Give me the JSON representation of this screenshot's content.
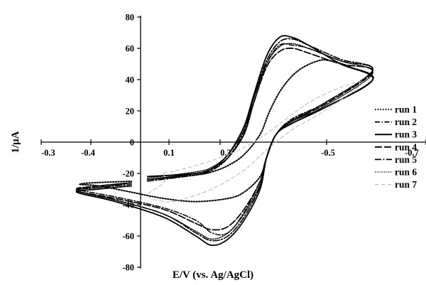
{
  "chart_data": {
    "type": "line",
    "title": "",
    "xlabel": "E/V (vs. Ag/AgCl)",
    "ylabel": "1/μA",
    "x_ticks": [
      "-0.3",
      "-0.4",
      "0.1",
      "0.3",
      "-0.5",
      "-0.7"
    ],
    "y_ticks": [
      "80",
      "60",
      "40",
      "20",
      "0",
      "-20",
      "-40",
      "-60",
      "-80"
    ],
    "ylim": [
      -80,
      80
    ],
    "grid": false,
    "legend_position": "right",
    "series": [
      {
        "name": "run 1",
        "color": "#000000",
        "dash": "dotted",
        "forward": [
          [
            -0.05,
            -24
          ],
          [
            0.1,
            -21
          ],
          [
            0.15,
            -19
          ],
          [
            0.2,
            -15
          ],
          [
            0.25,
            -8
          ],
          [
            0.3,
            5
          ],
          [
            0.33,
            20
          ],
          [
            0.37,
            35
          ],
          [
            0.42,
            46
          ],
          [
            0.48,
            52
          ],
          [
            0.52,
            52
          ],
          [
            0.58,
            48
          ],
          [
            0.65,
            40
          ]
        ],
        "reverse": [
          [
            0.65,
            30
          ],
          [
            0.5,
            22
          ],
          [
            0.4,
            14
          ],
          [
            0.35,
            5
          ],
          [
            0.32,
            -10
          ],
          [
            0.3,
            -22
          ],
          [
            0.25,
            -32
          ],
          [
            0.2,
            -36
          ],
          [
            0.1,
            -38
          ],
          [
            0.0,
            -36
          ],
          [
            -0.1,
            -32
          ],
          [
            -0.2,
            -28
          ],
          [
            -0.26,
            -27
          ],
          [
            -0.22,
            -26
          ],
          [
            -0.1,
            -25
          ]
        ]
      },
      {
        "name": "run 2",
        "color": "#000000",
        "dash": "dashdot",
        "forward": [
          [
            -0.05,
            -24
          ],
          [
            0.1,
            -20
          ],
          [
            0.15,
            -17
          ],
          [
            0.2,
            -10
          ],
          [
            0.25,
            5
          ],
          [
            0.28,
            25
          ],
          [
            0.32,
            50
          ],
          [
            0.36,
            62
          ],
          [
            0.4,
            62
          ],
          [
            0.45,
            60
          ],
          [
            0.55,
            52
          ],
          [
            0.65,
            46
          ]
        ],
        "reverse": [
          [
            0.65,
            35
          ],
          [
            0.5,
            25
          ],
          [
            0.4,
            15
          ],
          [
            0.35,
            5
          ],
          [
            0.32,
            -10
          ],
          [
            0.3,
            -25
          ],
          [
            0.25,
            -45
          ],
          [
            0.2,
            -58
          ],
          [
            0.15,
            -58
          ],
          [
            0.1,
            -50
          ],
          [
            0.0,
            -42
          ],
          [
            -0.15,
            -35
          ],
          [
            -0.27,
            -30
          ],
          [
            -0.2,
            -28
          ],
          [
            -0.1,
            -26
          ]
        ]
      },
      {
        "name": "run 3",
        "color": "#000000",
        "dash": "solid",
        "forward": [
          [
            -0.05,
            -22
          ],
          [
            0.1,
            -20
          ],
          [
            0.15,
            -17
          ],
          [
            0.2,
            -8
          ],
          [
            0.25,
            10
          ],
          [
            0.28,
            30
          ],
          [
            0.32,
            55
          ],
          [
            0.36,
            67
          ],
          [
            0.4,
            67
          ],
          [
            0.45,
            62
          ],
          [
            0.55,
            50
          ],
          [
            0.65,
            40
          ]
        ],
        "reverse": [
          [
            0.65,
            33
          ],
          [
            0.5,
            22
          ],
          [
            0.4,
            12
          ],
          [
            0.35,
            5
          ],
          [
            0.32,
            -10
          ],
          [
            0.3,
            -30
          ],
          [
            0.25,
            -50
          ],
          [
            0.2,
            -62
          ],
          [
            0.15,
            -66
          ],
          [
            0.1,
            -60
          ],
          [
            0.0,
            -48
          ],
          [
            -0.15,
            -38
          ],
          [
            -0.27,
            -32
          ],
          [
            -0.2,
            -30
          ],
          [
            -0.1,
            -28
          ]
        ]
      },
      {
        "name": "run 4",
        "color": "#000000",
        "dash": "longdash",
        "forward": [
          [
            -0.05,
            -24
          ],
          [
            0.1,
            -20
          ],
          [
            0.15,
            -17
          ],
          [
            0.2,
            -10
          ],
          [
            0.25,
            5
          ],
          [
            0.28,
            25
          ],
          [
            0.32,
            48
          ],
          [
            0.36,
            58
          ],
          [
            0.4,
            60
          ],
          [
            0.45,
            57
          ],
          [
            0.55,
            50
          ],
          [
            0.65,
            45
          ]
        ],
        "reverse": [
          [
            0.65,
            34
          ],
          [
            0.5,
            24
          ],
          [
            0.4,
            14
          ],
          [
            0.35,
            5
          ],
          [
            0.32,
            -10
          ],
          [
            0.3,
            -25
          ],
          [
            0.25,
            -43
          ],
          [
            0.2,
            -54
          ],
          [
            0.15,
            -56
          ],
          [
            0.1,
            -52
          ],
          [
            0.0,
            -43
          ],
          [
            -0.15,
            -36
          ],
          [
            -0.27,
            -31
          ],
          [
            -0.2,
            -28
          ],
          [
            -0.1,
            -26
          ]
        ]
      },
      {
        "name": "run 5",
        "color": "#000000",
        "dash": "longdash-dot",
        "forward": [
          [
            -0.05,
            -25
          ],
          [
            0.1,
            -21
          ],
          [
            0.15,
            -18
          ],
          [
            0.2,
            -10
          ],
          [
            0.25,
            7
          ],
          [
            0.28,
            28
          ],
          [
            0.32,
            52
          ],
          [
            0.36,
            64
          ],
          [
            0.4,
            66
          ],
          [
            0.45,
            62
          ],
          [
            0.55,
            53
          ],
          [
            0.65,
            46
          ]
        ],
        "reverse": [
          [
            0.65,
            36
          ],
          [
            0.5,
            25
          ],
          [
            0.4,
            14
          ],
          [
            0.35,
            5
          ],
          [
            0.32,
            -10
          ],
          [
            0.3,
            -28
          ],
          [
            0.25,
            -48
          ],
          [
            0.2,
            -60
          ],
          [
            0.15,
            -63
          ],
          [
            0.1,
            -58
          ],
          [
            0.0,
            -46
          ],
          [
            -0.15,
            -37
          ],
          [
            -0.27,
            -31
          ],
          [
            -0.2,
            -29
          ],
          [
            -0.1,
            -27
          ]
        ]
      },
      {
        "name": "run 6",
        "color": "#000000",
        "dash": "fine-dotted",
        "forward": [
          [
            -0.05,
            -23
          ],
          [
            0.1,
            -19
          ],
          [
            0.15,
            -16
          ],
          [
            0.2,
            -8
          ],
          [
            0.25,
            8
          ],
          [
            0.28,
            28
          ],
          [
            0.32,
            50
          ],
          [
            0.36,
            61
          ],
          [
            0.4,
            63
          ],
          [
            0.45,
            60
          ],
          [
            0.55,
            52
          ],
          [
            0.65,
            44
          ]
        ],
        "reverse": [
          [
            0.65,
            33
          ],
          [
            0.5,
            23
          ],
          [
            0.4,
            13
          ],
          [
            0.35,
            5
          ],
          [
            0.32,
            -10
          ],
          [
            0.3,
            -27
          ],
          [
            0.25,
            -46
          ],
          [
            0.2,
            -58
          ],
          [
            0.15,
            -62
          ],
          [
            0.1,
            -57
          ],
          [
            0.0,
            -46
          ],
          [
            -0.15,
            -37
          ],
          [
            -0.27,
            -31
          ],
          [
            -0.2,
            -29
          ],
          [
            -0.1,
            -26
          ]
        ]
      },
      {
        "name": "run 7",
        "color": "#bbbbbb",
        "dash": "dashed",
        "forward": [
          [
            0.0,
            -20
          ],
          [
            0.1,
            -15
          ],
          [
            0.2,
            -8
          ],
          [
            0.28,
            0
          ],
          [
            0.35,
            10
          ],
          [
            0.45,
            25
          ],
          [
            0.55,
            35
          ],
          [
            0.62,
            38
          ]
        ],
        "reverse": [
          [
            0.62,
            30
          ],
          [
            0.5,
            20
          ],
          [
            0.4,
            8
          ],
          [
            0.32,
            -5
          ],
          [
            0.25,
            -18
          ],
          [
            0.15,
            -30
          ],
          [
            0.05,
            -37
          ],
          [
            0.0,
            -38
          ],
          [
            -0.05,
            -34
          ],
          [
            0.0,
            -26
          ],
          [
            0.0,
            -20
          ]
        ]
      }
    ]
  }
}
